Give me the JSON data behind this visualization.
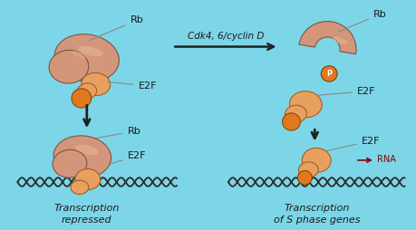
{
  "bg_color": "#7dd6e8",
  "rb_color": "#d4967a",
  "rb_light": "#e8b89a",
  "e2f_color": "#e8a060",
  "e2f_light": "#f0b878",
  "p_color": "#e07820",
  "arrow_color": "#202020",
  "label_color": "#1a1a1a",
  "line_color": "#888888",
  "title_left": "Transcription\nrepressed",
  "title_right": "Transcription\nof S phase genes",
  "arrow_label": "Cdk4, 6/cyclin D",
  "rna_label": "RNA",
  "rb_label": "Rb",
  "e2f_label": "E2F",
  "p_label": "P",
  "fig_width": 4.6,
  "fig_height": 2.54
}
